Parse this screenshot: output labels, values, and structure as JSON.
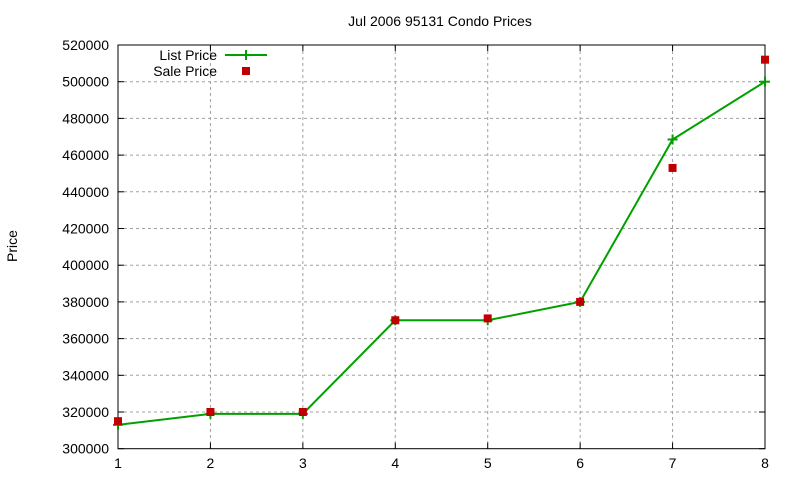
{
  "chart_data": {
    "type": "line",
    "title": "Jul 2006 95131 Condo Prices",
    "xlabel": "",
    "ylabel": "Price",
    "x": [
      1,
      2,
      3,
      4,
      5,
      6,
      7,
      8
    ],
    "xlim": [
      1,
      8
    ],
    "ylim": [
      300000,
      520000
    ],
    "xticks": [
      "1",
      "2",
      "3",
      "4",
      "5",
      "6",
      "7",
      "8"
    ],
    "yticks": [
      "300000",
      "320000",
      "340000",
      "360000",
      "380000",
      "400000",
      "420000",
      "440000",
      "460000",
      "480000",
      "500000",
      "520000"
    ],
    "grid": true,
    "legend_position": "top-left",
    "series": [
      {
        "name": "List Price",
        "style": "line+cross",
        "color": "#00a000",
        "values": [
          313000,
          319000,
          319000,
          370000,
          370000,
          380000,
          468500,
          500000
        ]
      },
      {
        "name": "Sale Price",
        "style": "square-markers",
        "color": "#c00000",
        "values": [
          315000,
          320000,
          320000,
          370000,
          371000,
          380000,
          453000,
          512000
        ]
      }
    ]
  }
}
